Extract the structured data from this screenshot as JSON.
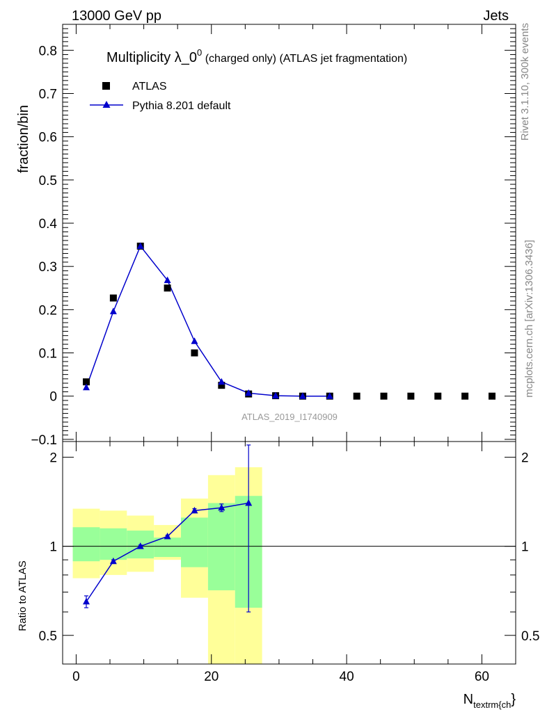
{
  "header": {
    "left": "13000 GeV pp",
    "right": "Jets"
  },
  "side_labels": {
    "rivet": "Rivet 3.1.10,  300k events",
    "mcplots": "mcplots.cern.ch [arXiv:1306.3436]"
  },
  "chart_data": {
    "type": "scatter",
    "title_main": "Multiplicity λ_0",
    "title_sup": "0",
    "title_rest": " (charged only) (ATLAS jet fragmentation)",
    "ylabel": "fraction/bin",
    "ratio_ylabel": "Ratio to ATLAS",
    "xlabel_main": "N",
    "xlabel_sub": "textrm{ch",
    "xlabel_close": "}",
    "watermark": "ATLAS_2019_I1740909",
    "xlim": [
      -2,
      65
    ],
    "ylim": [
      -0.105,
      0.86
    ],
    "ratio_ylim": [
      0.4,
      2.26
    ],
    "x_ticks": [
      0,
      20,
      40,
      60
    ],
    "y_ticks": [
      -0.1,
      0,
      0.1,
      0.2,
      0.3,
      0.4,
      0.5,
      0.6,
      0.7,
      0.8
    ],
    "y_tick_labels": [
      "−0.1",
      "0",
      "0.1",
      "0.2",
      "0.3",
      "0.4",
      "0.5",
      "0.6",
      "0.7",
      "0.8"
    ],
    "ratio_ticks": [
      0.5,
      1,
      2
    ],
    "ratio_tick_labels": [
      "0.5",
      "1",
      "2"
    ],
    "legend": [
      {
        "label": "ATLAS",
        "marker": "square",
        "color": "#000000"
      },
      {
        "label": "Pythia 8.201 default",
        "marker": "triangle",
        "color": "#0000cc"
      }
    ],
    "series": [
      {
        "name": "ATLAS",
        "x": [
          1.5,
          5.5,
          9.5,
          13.5,
          17.5,
          21.5,
          25.5,
          29.5,
          33.5,
          37.5,
          41.5,
          45.5,
          49.5,
          53.5,
          57.5,
          61.5
        ],
        "y": [
          0.033,
          0.227,
          0.347,
          0.25,
          0.1,
          0.025,
          0.005,
          0.001,
          0.0,
          0.0,
          0.0,
          0.0,
          0.0,
          0.0,
          0.0,
          0.0
        ]
      },
      {
        "name": "Pythia 8.201 default",
        "x": [
          1.5,
          5.5,
          9.5,
          13.5,
          17.5,
          21.5,
          25.5,
          29.5,
          33.5,
          37.5
        ],
        "y": [
          0.02,
          0.196,
          0.347,
          0.268,
          0.127,
          0.033,
          0.007,
          0.001,
          0.0,
          0.0
        ],
        "ratio": [
          0.65,
          0.89,
          1.0,
          1.08,
          1.32,
          1.35,
          1.4
        ],
        "ratio_err": [
          0.03,
          0.01,
          0.01,
          0.01,
          0.02,
          0.04,
          0.8
        ]
      }
    ],
    "ratio_bands": [
      {
        "x0": -0.5,
        "x1": 3.5,
        "y_lo": 0.78,
        "y_hi": 1.34,
        "g_lo": 0.89,
        "g_hi": 1.16
      },
      {
        "x0": 3.5,
        "x1": 7.5,
        "y_lo": 0.8,
        "y_hi": 1.32,
        "g_lo": 0.9,
        "g_hi": 1.15
      },
      {
        "x0": 7.5,
        "x1": 11.5,
        "y_lo": 0.82,
        "y_hi": 1.27,
        "g_lo": 0.91,
        "g_hi": 1.13
      },
      {
        "x0": 11.5,
        "x1": 15.5,
        "y_lo": 0.9,
        "y_hi": 1.18,
        "g_lo": 0.92,
        "g_hi": 1.07
      },
      {
        "x0": 15.5,
        "x1": 19.5,
        "y_lo": 0.67,
        "y_hi": 1.45,
        "g_lo": 0.85,
        "g_hi": 1.25
      },
      {
        "x0": 19.5,
        "x1": 23.5,
        "y_lo": 0.4,
        "y_hi": 1.74,
        "g_lo": 0.71,
        "g_hi": 1.4
      },
      {
        "x0": 23.5,
        "x1": 27.5,
        "y_lo": 0.4,
        "y_hi": 1.85,
        "g_lo": 0.62,
        "g_hi": 1.48
      }
    ],
    "colors": {
      "yellow": "#ffff99",
      "green": "#99ff99",
      "pythia": "#0000cc",
      "data": "#000000"
    }
  }
}
